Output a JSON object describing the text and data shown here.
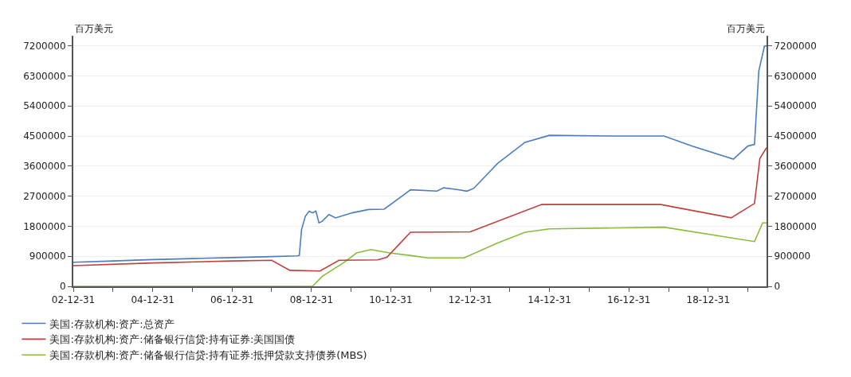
{
  "chart_data": {
    "type": "line",
    "ylabel": "百万美元",
    "y2label": "百万美元",
    "xlim": [
      "2002-12-31",
      "2020-06-20"
    ],
    "xticks": [
      {
        "value": "2002-12-31",
        "label": "02-12-31"
      },
      {
        "value": "2003-12-31",
        "label": null
      },
      {
        "value": "2004-12-31",
        "label": "04-12-31"
      },
      {
        "value": "2005-12-31",
        "label": null
      },
      {
        "value": "2006-12-31",
        "label": "06-12-31"
      },
      {
        "value": "2007-12-31",
        "label": null
      },
      {
        "value": "2008-12-31",
        "label": "08-12-31"
      },
      {
        "value": "2009-12-31",
        "label": null
      },
      {
        "value": "2010-12-31",
        "label": "10-12-31"
      },
      {
        "value": "2011-12-31",
        "label": null
      },
      {
        "value": "2012-12-31",
        "label": "12-12-31"
      },
      {
        "value": "2013-12-31",
        "label": null
      },
      {
        "value": "2014-12-31",
        "label": "14-12-31"
      },
      {
        "value": "2015-12-31",
        "label": null
      },
      {
        "value": "2016-12-31",
        "label": "16-12-31"
      },
      {
        "value": "2017-12-31",
        "label": null
      },
      {
        "value": "2018-12-31",
        "label": "18-12-31"
      },
      {
        "value": "2019-12-31",
        "label": null
      }
    ],
    "ylim": [
      0,
      7500000
    ],
    "yticks": [
      0,
      900000,
      1800000,
      2700000,
      3600000,
      4500000,
      5400000,
      6300000,
      7200000
    ],
    "y2lim": [
      0,
      7500000
    ],
    "y2ticks": [
      0,
      900000,
      1800000,
      2700000,
      3600000,
      4500000,
      5400000,
      6300000,
      7200000
    ],
    "grid": "y",
    "legend": "bottom",
    "marker": "none",
    "line_style": "solid",
    "series": [
      {
        "name": "美国:存款机构:资产:总资产",
        "color": "#4a7ebf",
        "x": [
          "2002-12-31",
          "2003-12-31",
          "2004-12-31",
          "2005-12-31",
          "2006-12-31",
          "2007-12-31",
          "2008-08-15",
          "2008-09-10",
          "2008-10-01",
          "2008-11-05",
          "2008-12-10",
          "2009-01-10",
          "2009-02-10",
          "2009-03-10",
          "2009-04-10",
          "2009-06-10",
          "2009-08-10",
          "2010-01-10",
          "2010-06-10",
          "2010-11-01",
          "2011-07-01",
          "2012-03-01",
          "2012-05-01",
          "2012-09-01",
          "2012-12-01",
          "2013-02-01",
          "2013-09-10",
          "2014-05-20",
          "2014-12-31",
          "2016-06-30",
          "2017-11-20",
          "2018-08-01",
          "2019-08-20",
          "2019-12-31",
          "2020-03-01",
          "2020-04-10",
          "2020-06-01",
          "2020-06-20"
        ],
        "values": [
          720000,
          760000,
          800000,
          830000,
          860000,
          890000,
          910000,
          920000,
          1700000,
          2100000,
          2250000,
          2200000,
          2250000,
          1900000,
          1950000,
          2150000,
          2050000,
          2200000,
          2300000,
          2310000,
          2890000,
          2850000,
          2950000,
          2900000,
          2850000,
          2930000,
          3680000,
          4310000,
          4520000,
          4500000,
          4500000,
          4200000,
          3810000,
          4200000,
          4250000,
          6450000,
          7190000,
          7200000
        ]
      },
      {
        "name": "美国:存款机构:资产:储备银行信贷:持有证券:美国国债",
        "color": "#c0403e",
        "axis": "y2",
        "x": [
          "2002-12-31",
          "2004-12-31",
          "2006-12-31",
          "2007-12-31",
          "2008-06-15",
          "2009-03-20",
          "2009-09-10",
          "2010-09-01",
          "2010-11-25",
          "2011-07-01",
          "2012-12-31",
          "2014-10-20",
          "2017-10-20",
          "2019-07-30",
          "2020-03-01",
          "2020-04-20",
          "2020-06-20"
        ],
        "values": [
          620000,
          700000,
          760000,
          780000,
          480000,
          460000,
          780000,
          790000,
          870000,
          1620000,
          1630000,
          2450000,
          2450000,
          2050000,
          2480000,
          3830000,
          4150000
        ]
      },
      {
        "name": "美国:存款机构:资产:储备银行信贷:持有证券:抵押贷款支持债券(MBS)",
        "color": "#8bbb3e",
        "x": [
          "2002-12-31",
          "2009-01-10",
          "2009-04-10",
          "2009-10-20",
          "2010-02-20",
          "2010-07-01",
          "2010-12-20",
          "2011-07-10",
          "2011-12-05",
          "2012-11-05",
          "2013-09-10",
          "2014-05-20",
          "2014-12-31",
          "2017-11-20",
          "2020-03-01",
          "2020-05-15",
          "2020-06-20"
        ],
        "values": [
          0,
          0,
          300000,
          700000,
          1000000,
          1100000,
          1000000,
          920000,
          850000,
          850000,
          1300000,
          1620000,
          1720000,
          1770000,
          1340000,
          1900000,
          1900000
        ]
      }
    ]
  }
}
